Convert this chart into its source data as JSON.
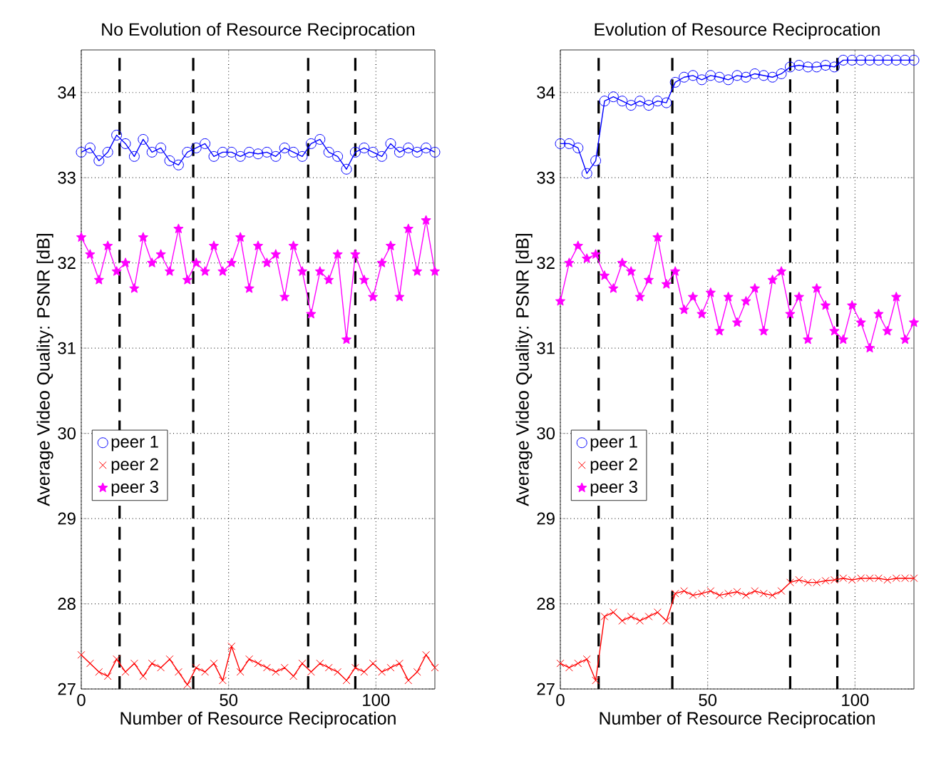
{
  "chart_data": [
    {
      "type": "line",
      "title": "No Evolution of Resource Reciprocation",
      "xlabel": "Number of Resource Reciprocation",
      "ylabel": "Average Video Quality: PSNR [dB]",
      "xlim": [
        0,
        120
      ],
      "xticks": [
        0,
        50,
        100
      ],
      "ylim": [
        27,
        34.5
      ],
      "yticks": [
        27,
        28,
        29,
        30,
        31,
        32,
        33,
        34
      ],
      "grid": true,
      "legend": "left",
      "line_style": "solid",
      "x": [
        0,
        3,
        6,
        9,
        12,
        15,
        18,
        21,
        24,
        27,
        30,
        33,
        36,
        39,
        42,
        45,
        48,
        51,
        54,
        57,
        60,
        63,
        66,
        69,
        72,
        75,
        78,
        81,
        84,
        87,
        90,
        93,
        96,
        99,
        102,
        105,
        108,
        111,
        114,
        117,
        120
      ],
      "series": [
        {
          "name": "peer 1",
          "color": "#0000ff",
          "marker": "circle",
          "values": [
            33.3,
            33.35,
            33.2,
            33.3,
            33.5,
            33.4,
            33.25,
            33.45,
            33.3,
            33.35,
            33.2,
            33.15,
            33.3,
            33.35,
            33.4,
            33.25,
            33.3,
            33.3,
            33.25,
            33.3,
            33.28,
            33.3,
            33.25,
            33.35,
            33.3,
            33.25,
            33.4,
            33.45,
            33.3,
            33.25,
            33.1,
            33.3,
            33.35,
            33.3,
            33.25,
            33.4,
            33.3,
            33.35,
            33.3,
            33.35,
            33.3
          ]
        },
        {
          "name": "peer 2",
          "color": "#ff0000",
          "marker": "cross",
          "values": [
            27.4,
            27.3,
            27.2,
            27.15,
            27.35,
            27.2,
            27.3,
            27.15,
            27.3,
            27.25,
            27.35,
            27.2,
            27.05,
            27.25,
            27.2,
            27.3,
            27.1,
            27.5,
            27.2,
            27.35,
            27.3,
            27.25,
            27.2,
            27.25,
            27.15,
            27.3,
            27.2,
            27.3,
            27.25,
            27.2,
            27.1,
            27.25,
            27.2,
            27.3,
            27.2,
            27.25,
            27.3,
            27.1,
            27.2,
            27.4,
            27.25
          ]
        },
        {
          "name": "peer 3",
          "color": "#ff00ff",
          "marker": "star",
          "values": [
            32.3,
            32.1,
            31.8,
            32.2,
            31.9,
            32.0,
            31.7,
            32.3,
            32.0,
            32.1,
            31.9,
            32.4,
            31.8,
            32.0,
            31.9,
            32.2,
            31.9,
            32.0,
            32.3,
            31.7,
            32.2,
            32.0,
            32.1,
            31.6,
            32.2,
            31.9,
            31.4,
            31.9,
            31.8,
            32.1,
            31.1,
            32.1,
            31.8,
            31.6,
            32.0,
            32.2,
            31.6,
            32.4,
            31.9,
            32.5,
            31.9
          ]
        }
      ],
      "ref_lines": [
        {
          "axis": "x",
          "value": 13,
          "color": "#000000",
          "line_style": "dashed"
        },
        {
          "axis": "x",
          "value": 38,
          "color": "#000000",
          "line_style": "dashed"
        },
        {
          "axis": "x",
          "value": 77,
          "color": "#000000",
          "line_style": "dashed"
        },
        {
          "axis": "x",
          "value": 93,
          "color": "#000000",
          "line_style": "dashed"
        }
      ]
    },
    {
      "type": "line",
      "title": "Evolution of Resource Reciprocation",
      "xlabel": "Number of Resource Reciprocation",
      "ylabel": "Average Video Quality: PSNR [dB]",
      "xlim": [
        0,
        120
      ],
      "xticks": [
        0,
        50,
        100
      ],
      "ylim": [
        27,
        34.5
      ],
      "yticks": [
        27,
        28,
        29,
        30,
        31,
        32,
        33,
        34
      ],
      "grid": true,
      "legend": "left",
      "line_style": "solid",
      "x": [
        0,
        3,
        6,
        9,
        12,
        15,
        18,
        21,
        24,
        27,
        30,
        33,
        36,
        39,
        42,
        45,
        48,
        51,
        54,
        57,
        60,
        63,
        66,
        69,
        72,
        75,
        78,
        81,
        84,
        87,
        90,
        93,
        96,
        99,
        102,
        105,
        108,
        111,
        114,
        117,
        120
      ],
      "series": [
        {
          "name": "peer 1",
          "color": "#0000ff",
          "marker": "circle",
          "values": [
            33.4,
            33.4,
            33.35,
            33.05,
            33.2,
            33.9,
            33.95,
            33.9,
            33.85,
            33.9,
            33.85,
            33.9,
            33.88,
            34.12,
            34.18,
            34.2,
            34.15,
            34.2,
            34.18,
            34.15,
            34.2,
            34.18,
            34.22,
            34.2,
            34.18,
            34.22,
            34.3,
            34.32,
            34.3,
            34.3,
            34.32,
            34.3,
            34.38,
            34.38,
            34.38,
            34.38,
            34.38,
            34.38,
            34.38,
            34.38,
            34.38
          ]
        },
        {
          "name": "peer 2",
          "color": "#ff0000",
          "marker": "cross",
          "values": [
            27.3,
            27.25,
            27.3,
            27.35,
            27.1,
            27.85,
            27.9,
            27.8,
            27.85,
            27.8,
            27.85,
            27.9,
            27.8,
            28.12,
            28.15,
            28.1,
            28.12,
            28.15,
            28.1,
            28.12,
            28.14,
            28.1,
            28.15,
            28.12,
            28.1,
            28.15,
            28.25,
            28.28,
            28.25,
            28.25,
            28.27,
            28.28,
            28.3,
            28.28,
            28.3,
            28.3,
            28.3,
            28.28,
            28.3,
            28.3,
            28.3
          ]
        },
        {
          "name": "peer 3",
          "color": "#ff00ff",
          "marker": "star",
          "values": [
            31.55,
            32.0,
            32.2,
            32.05,
            32.1,
            31.85,
            31.7,
            32.0,
            31.9,
            31.6,
            31.8,
            32.3,
            31.75,
            31.9,
            31.45,
            31.6,
            31.4,
            31.65,
            31.2,
            31.6,
            31.3,
            31.55,
            31.7,
            31.2,
            31.8,
            31.9,
            31.4,
            31.6,
            31.1,
            31.7,
            31.5,
            31.2,
            31.1,
            31.5,
            31.3,
            31.0,
            31.4,
            31.2,
            31.6,
            31.1,
            31.3
          ]
        }
      ],
      "ref_lines": [
        {
          "axis": "x",
          "value": 13,
          "color": "#000000",
          "line_style": "dashed"
        },
        {
          "axis": "x",
          "value": 38,
          "color": "#000000",
          "line_style": "dashed"
        },
        {
          "axis": "x",
          "value": 78,
          "color": "#000000",
          "line_style": "dashed"
        },
        {
          "axis": "x",
          "value": 94,
          "color": "#000000",
          "line_style": "dashed"
        }
      ]
    }
  ]
}
